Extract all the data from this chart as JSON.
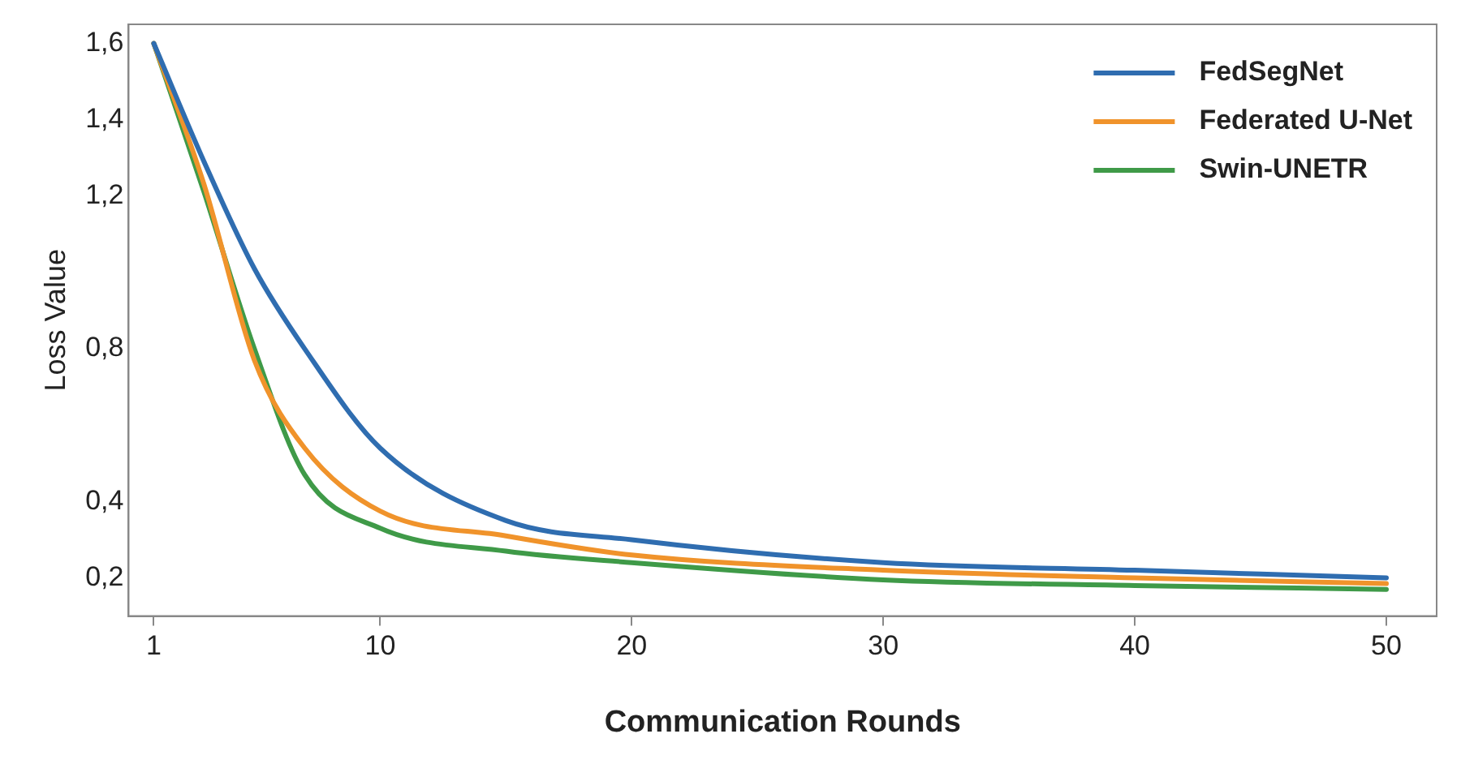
{
  "chart_data": {
    "type": "line",
    "xlabel": "Communication Rounds",
    "ylabel": "Loss Value",
    "xlim": [
      0,
      52
    ],
    "xticks": [
      1,
      10,
      20,
      30,
      40,
      50
    ],
    "ylim": [
      0.1,
      1.65
    ],
    "yticks": [
      {
        "value": 0.2,
        "label": "0,2"
      },
      {
        "value": 0.4,
        "label": "0,4"
      },
      {
        "value": 0.8,
        "label": "0,8"
      },
      {
        "value": 1.2,
        "label": "1,2"
      },
      {
        "value": 1.4,
        "label": "1,4"
      },
      {
        "value": 1.6,
        "label": "1,6"
      }
    ],
    "grid": false,
    "legend": "top right",
    "marker": "none",
    "line_style": "solid",
    "x": [
      1,
      3,
      5,
      7,
      10,
      15,
      20,
      30,
      40,
      50
    ],
    "series": [
      {
        "name": "FedSegNet",
        "color": "#2f6db0",
        "values": [
          1.6,
          1.29,
          1.01,
          0.8,
          0.54,
          0.35,
          0.3,
          0.24,
          0.22,
          0.2
        ]
      },
      {
        "name": "Federated U-Net",
        "color": "#f0932b",
        "values": [
          1.6,
          1.23,
          0.77,
          0.54,
          0.375,
          0.31,
          0.26,
          0.22,
          0.2,
          0.185
        ]
      },
      {
        "name": "Swin-UNETR",
        "color": "#3f9a48",
        "values": [
          1.6,
          1.21,
          0.8,
          0.47,
          0.33,
          0.27,
          0.24,
          0.195,
          0.18,
          0.17
        ]
      }
    ]
  }
}
